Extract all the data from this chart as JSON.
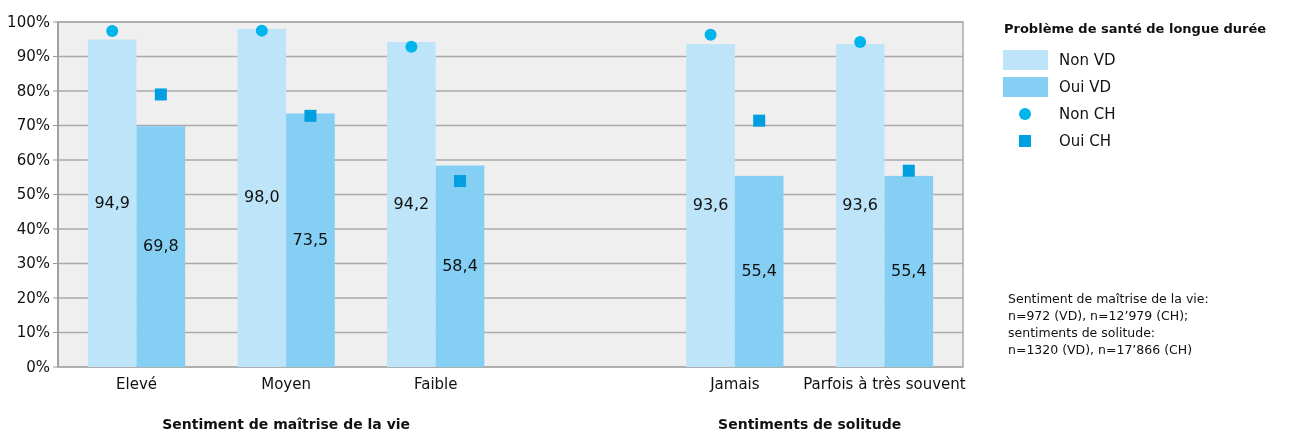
{
  "chart_data": {
    "type": "bar",
    "legend_title": "Problème de santé de longue durée",
    "legend": "right",
    "grid": "y",
    "categories": [
      "Elevé",
      "Moyen",
      "Faible",
      null,
      "Jamais",
      "Parfois à très souvent"
    ],
    "ylim": [
      0,
      100
    ],
    "yticks": [
      {
        "value": 0,
        "label": "0%"
      },
      {
        "value": 10,
        "label": "10%"
      },
      {
        "value": 20,
        "label": "20%"
      },
      {
        "value": 30,
        "label": "30%"
      },
      {
        "value": 40,
        "label": "40%"
      },
      {
        "value": 50,
        "label": "50%"
      },
      {
        "value": 60,
        "label": "60%"
      },
      {
        "value": 70,
        "label": "70%"
      },
      {
        "value": 80,
        "label": "80%"
      },
      {
        "value": 90,
        "label": "90%"
      },
      {
        "value": 100,
        "label": "100%"
      }
    ],
    "series": [
      {
        "name": "Non VD",
        "color": "#bde4f8",
        "values": [
          94.9,
          98.0,
          94.2,
          null,
          93.6,
          93.6
        ],
        "value_labels": [
          "94,9",
          "98,0",
          "94,2",
          null,
          "93,6",
          "93,6"
        ]
      },
      {
        "name": "Oui VD",
        "color": "#84cff3",
        "values": [
          69.8,
          73.5,
          58.4,
          null,
          55.4,
          55.4
        ],
        "value_labels": [
          "69,8",
          "73,5",
          "58,4",
          null,
          "55,4",
          "55,4"
        ]
      },
      {
        "name": "Non CH",
        "type": "scatter",
        "marker": "circle",
        "color": "#00b5ec",
        "values": [
          97.4,
          97.5,
          92.8,
          null,
          96.3,
          94.2
        ]
      },
      {
        "name": "Oui CH",
        "type": "scatter",
        "marker": "square",
        "color": "#009fe0",
        "values": [
          79.0,
          72.8,
          53.9,
          null,
          71.4,
          56.9
        ]
      }
    ],
    "annotations": [
      "Sentiment de maîtrise de la vie",
      "Sentiments de solitude",
      "Sentiment de maîtrise de la vie:\nn=972 (VD), n=12’979 (CH);\nsentiments de solitude:\nn=1320 (VD), n=17’866 (CH)"
    ]
  }
}
